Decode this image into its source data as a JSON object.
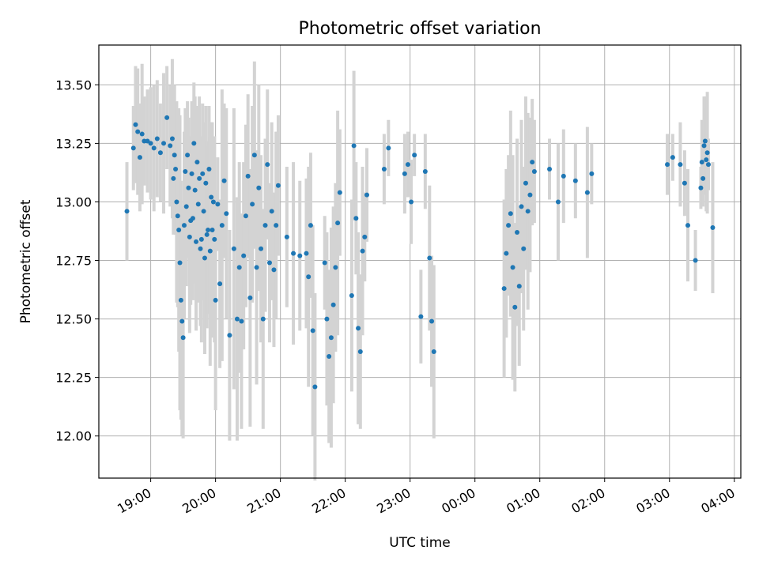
{
  "chart_data": {
    "type": "scatter",
    "title": "Photometric offset variation",
    "xlabel": "UTC time",
    "ylabel": "Photometric offset",
    "x_is_time": true,
    "xlim": [
      "18:12",
      "04:06"
    ],
    "ylim": [
      11.82,
      13.67
    ],
    "x_ticks": [
      "19:00",
      "20:00",
      "21:00",
      "22:00",
      "23:00",
      "00:00",
      "01:00",
      "02:00",
      "03:00",
      "04:00"
    ],
    "y_ticks": [
      "12.00",
      "12.25",
      "12.50",
      "12.75",
      "13.00",
      "13.25",
      "13.50"
    ],
    "grid": true,
    "point_color": "#1f77b4",
    "errorbar_color": "#d3d3d3",
    "series": [
      {
        "x": [
          "18:38",
          "18:44",
          "18:46",
          "18:48",
          "18:50",
          "18:52",
          "18:54",
          "18:57",
          "19:00",
          "19:03",
          "19:06",
          "19:09",
          "19:12",
          "19:15",
          "19:18",
          "19:20",
          "19:21",
          "19:22",
          "19:23",
          "19:24",
          "19:25",
          "19:26",
          "19:27",
          "19:28",
          "19:29",
          "19:30",
          "19:31",
          "19:32",
          "19:33",
          "19:34",
          "19:35",
          "19:36",
          "19:37",
          "19:38",
          "19:39",
          "19:40",
          "19:41",
          "19:42",
          "19:43",
          "19:44",
          "19:45",
          "19:46",
          "19:47",
          "19:48",
          "19:49",
          "19:50",
          "19:51",
          "19:52",
          "19:53",
          "19:54",
          "19:55",
          "19:56",
          "19:57",
          "19:58",
          "19:59",
          "20:00",
          "20:02",
          "20:04",
          "20:06",
          "20:08",
          "20:10",
          "20:13",
          "20:17",
          "20:20",
          "20:22",
          "20:24",
          "20:26",
          "20:28",
          "20:30",
          "20:32",
          "20:34",
          "20:36",
          "20:38",
          "20:40",
          "20:42",
          "20:44",
          "20:46",
          "20:48",
          "20:50",
          "20:52",
          "20:54",
          "20:56",
          "20:58",
          "21:06",
          "21:12",
          "21:18",
          "21:24",
          "21:26",
          "21:28",
          "21:30",
          "21:32",
          "21:41",
          "21:43",
          "21:45",
          "21:47",
          "21:49",
          "21:51",
          "21:53",
          "21:55",
          "22:06",
          "22:08",
          "22:10",
          "22:12",
          "22:14",
          "22:16",
          "22:18",
          "22:20",
          "22:36",
          "22:40",
          "22:55",
          "22:58",
          "23:01",
          "23:04",
          "23:10",
          "23:14",
          "23:18",
          "23:20",
          "23:22",
          "00:27",
          "00:29",
          "00:31",
          "00:33",
          "00:35",
          "00:37",
          "00:39",
          "00:41",
          "00:43",
          "00:45",
          "00:47",
          "00:49",
          "00:51",
          "00:53",
          "00:55",
          "01:09",
          "01:17",
          "01:22",
          "01:33",
          "01:44",
          "01:48",
          "02:58",
          "03:03",
          "03:10",
          "03:14",
          "03:17",
          "03:24",
          "03:29",
          "03:30",
          "03:31",
          "03:32",
          "03:33",
          "03:34",
          "03:35",
          "03:36",
          "03:40"
        ],
        "y": [
          12.96,
          13.23,
          13.33,
          13.3,
          13.19,
          13.29,
          13.26,
          13.26,
          13.25,
          13.23,
          13.27,
          13.21,
          13.25,
          13.36,
          13.24,
          13.27,
          13.1,
          13.2,
          13.14,
          13.0,
          12.94,
          12.88,
          12.74,
          12.58,
          12.49,
          12.42,
          12.9,
          13.13,
          12.98,
          13.2,
          13.06,
          12.85,
          12.92,
          13.12,
          12.93,
          13.25,
          13.05,
          12.83,
          13.17,
          12.99,
          13.1,
          12.8,
          12.84,
          13.12,
          12.96,
          12.76,
          13.08,
          12.86,
          12.88,
          13.14,
          12.79,
          13.02,
          12.88,
          13.0,
          12.84,
          12.58,
          12.99,
          12.65,
          12.9,
          13.09,
          12.95,
          12.43,
          12.8,
          12.5,
          12.72,
          12.49,
          12.77,
          12.94,
          13.11,
          12.59,
          12.99,
          13.2,
          12.72,
          13.06,
          12.8,
          12.5,
          12.9,
          13.16,
          12.74,
          12.96,
          12.71,
          12.9,
          13.07,
          12.85,
          12.78,
          12.77,
          12.78,
          12.68,
          12.9,
          12.45,
          12.21,
          12.74,
          12.5,
          12.34,
          12.42,
          12.56,
          12.72,
          12.91,
          13.04,
          12.6,
          13.24,
          12.93,
          12.46,
          12.36,
          12.79,
          12.85,
          13.03,
          13.14,
          13.23,
          13.12,
          13.16,
          13.0,
          13.2,
          12.51,
          13.13,
          12.76,
          12.49,
          12.36,
          12.63,
          12.78,
          12.9,
          12.95,
          12.72,
          12.55,
          12.87,
          12.64,
          12.98,
          12.8,
          13.08,
          12.96,
          13.03,
          13.17,
          13.13,
          13.14,
          13.0,
          13.11,
          13.09,
          13.04,
          13.12,
          13.16,
          13.19,
          13.16,
          13.08,
          12.9,
          12.75,
          13.06,
          13.17,
          13.1,
          13.24,
          13.26,
          13.18,
          13.21,
          13.16,
          12.89
        ],
        "yerr": [
          0.21,
          0.18,
          0.25,
          0.27,
          0.23,
          0.3,
          0.19,
          0.22,
          0.24,
          0.27,
          0.25,
          0.21,
          0.3,
          0.22,
          0.26,
          0.34,
          0.24,
          0.3,
          0.28,
          0.43,
          0.39,
          0.52,
          0.63,
          0.51,
          0.49,
          0.43,
          0.4,
          0.27,
          0.34,
          0.23,
          0.3,
          0.41,
          0.36,
          0.31,
          0.35,
          0.26,
          0.4,
          0.38,
          0.24,
          0.42,
          0.35,
          0.33,
          0.44,
          0.3,
          0.38,
          0.41,
          0.33,
          0.4,
          0.36,
          0.27,
          0.49,
          0.32,
          0.46,
          0.25,
          0.44,
          0.47,
          0.2,
          0.36,
          0.58,
          0.33,
          0.45,
          0.45,
          0.6,
          0.52,
          0.45,
          0.46,
          0.4,
          0.39,
          0.35,
          0.55,
          0.42,
          0.4,
          0.5,
          0.44,
          0.4,
          0.47,
          0.37,
          0.32,
          0.34,
          0.38,
          0.33,
          0.4,
          0.3,
          0.3,
          0.39,
          0.32,
          0.32,
          0.47,
          0.31,
          0.45,
          0.4,
          0.2,
          0.37,
          0.37,
          0.47,
          0.42,
          0.36,
          0.48,
          0.27,
          0.41,
          0.32,
          0.24,
          0.41,
          0.33,
          0.36,
          0.19,
          0.2,
          0.15,
          0.12,
          0.17,
          0.14,
          0.18,
          0.09,
          0.2,
          0.16,
          0.31,
          0.28,
          0.37,
          0.38,
          0.36,
          0.3,
          0.44,
          0.48,
          0.36,
          0.4,
          0.34,
          0.37,
          0.35,
          0.37,
          0.42,
          0.33,
          0.27,
          0.22,
          0.13,
          0.25,
          0.2,
          0.16,
          0.28,
          0.13,
          0.13,
          0.1,
          0.18,
          0.14,
          0.24,
          0.13,
          0.09,
          0.18,
          0.12,
          0.21,
          0.19,
          0.22,
          0.26,
          0.11,
          0.28
        ]
      }
    ]
  }
}
